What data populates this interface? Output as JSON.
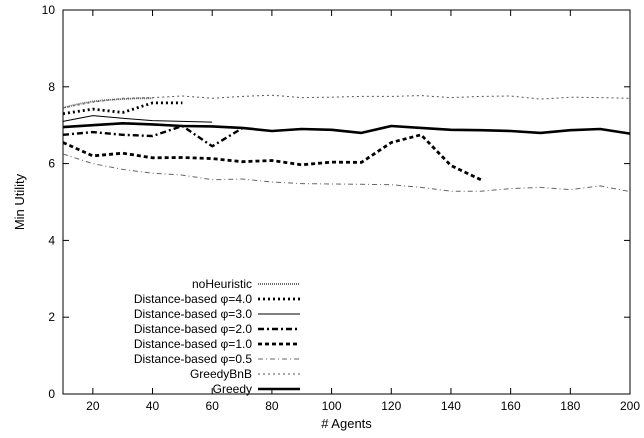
{
  "chart_data": {
    "type": "line",
    "title": "",
    "xlabel": "# Agents",
    "ylabel": "Min Utility",
    "xlim": [
      10,
      200
    ],
    "ylim": [
      0,
      10
    ],
    "xticks": [
      20,
      40,
      60,
      80,
      100,
      120,
      140,
      160,
      180,
      200
    ],
    "yticks": [
      0,
      2,
      4,
      6,
      8,
      10
    ],
    "grid": false,
    "legend_position": "bottom-left",
    "series": [
      {
        "name": "noHeuristic",
        "style": "dense-dotted",
        "color": "#555555",
        "points": [
          [
            10,
            7.45
          ],
          [
            15,
            7.55
          ],
          [
            20,
            7.62
          ],
          [
            25,
            7.66
          ],
          [
            30,
            7.68
          ],
          [
            35,
            7.7
          ],
          [
            40,
            7.7
          ]
        ]
      },
      {
        "name": "Distance-based φ=4.0",
        "style": "bold-dotted",
        "color": "#000000",
        "points": [
          [
            10,
            7.3
          ],
          [
            20,
            7.42
          ],
          [
            30,
            7.33
          ],
          [
            40,
            7.58
          ],
          [
            50,
            7.58
          ]
        ]
      },
      {
        "name": "Distance-based φ=3.0",
        "style": "solid-thin",
        "color": "#000000",
        "points": [
          [
            10,
            7.1
          ],
          [
            20,
            7.25
          ],
          [
            30,
            7.18
          ],
          [
            40,
            7.12
          ],
          [
            50,
            7.1
          ],
          [
            60,
            7.08
          ]
        ]
      },
      {
        "name": "Distance-based φ=2.0",
        "style": "dash-dot",
        "color": "#000000",
        "points": [
          [
            10,
            6.75
          ],
          [
            20,
            6.82
          ],
          [
            30,
            6.75
          ],
          [
            40,
            6.72
          ],
          [
            50,
            6.98
          ],
          [
            60,
            6.45
          ],
          [
            70,
            6.92
          ]
        ]
      },
      {
        "name": "Distance-based φ=1.0",
        "style": "bold-dashed",
        "color": "#000000",
        "points": [
          [
            10,
            6.55
          ],
          [
            20,
            6.2
          ],
          [
            30,
            6.27
          ],
          [
            40,
            6.15
          ],
          [
            50,
            6.16
          ],
          [
            60,
            6.13
          ],
          [
            70,
            6.05
          ],
          [
            80,
            6.08
          ],
          [
            90,
            5.97
          ],
          [
            100,
            6.04
          ],
          [
            110,
            6.03
          ],
          [
            120,
            6.55
          ],
          [
            130,
            6.75
          ],
          [
            140,
            5.95
          ],
          [
            150,
            5.58
          ]
        ]
      },
      {
        "name": "Distance-based φ=0.5",
        "style": "thin-dash-dot",
        "color": "#666666",
        "points": [
          [
            10,
            6.25
          ],
          [
            20,
            6.0
          ],
          [
            30,
            5.85
          ],
          [
            40,
            5.75
          ],
          [
            50,
            5.7
          ],
          [
            60,
            5.58
          ],
          [
            70,
            5.6
          ],
          [
            80,
            5.52
          ],
          [
            90,
            5.48
          ],
          [
            100,
            5.47
          ],
          [
            110,
            5.46
          ],
          [
            120,
            5.45
          ],
          [
            130,
            5.38
          ],
          [
            140,
            5.28
          ],
          [
            150,
            5.28
          ],
          [
            160,
            5.35
          ],
          [
            170,
            5.38
          ],
          [
            180,
            5.32
          ],
          [
            190,
            5.42
          ],
          [
            200,
            5.27
          ]
        ]
      },
      {
        "name": "GreedyBnB",
        "style": "thin-dotted",
        "color": "#555555",
        "points": [
          [
            10,
            7.45
          ],
          [
            20,
            7.6
          ],
          [
            30,
            7.7
          ],
          [
            40,
            7.72
          ],
          [
            50,
            7.76
          ],
          [
            60,
            7.7
          ],
          [
            70,
            7.75
          ],
          [
            80,
            7.78
          ],
          [
            90,
            7.72
          ],
          [
            100,
            7.73
          ],
          [
            110,
            7.75
          ],
          [
            120,
            7.75
          ],
          [
            130,
            7.77
          ],
          [
            140,
            7.72
          ],
          [
            150,
            7.75
          ],
          [
            160,
            7.76
          ],
          [
            170,
            7.68
          ],
          [
            180,
            7.73
          ],
          [
            190,
            7.72
          ],
          [
            200,
            7.7
          ]
        ]
      },
      {
        "name": "Greedy",
        "style": "solid-thick",
        "color": "#000000",
        "points": [
          [
            10,
            6.95
          ],
          [
            20,
            7.0
          ],
          [
            30,
            7.05
          ],
          [
            40,
            7.02
          ],
          [
            50,
            6.98
          ],
          [
            60,
            6.97
          ],
          [
            70,
            6.93
          ],
          [
            80,
            6.85
          ],
          [
            90,
            6.9
          ],
          [
            100,
            6.88
          ],
          [
            110,
            6.8
          ],
          [
            120,
            6.98
          ],
          [
            130,
            6.93
          ],
          [
            140,
            6.88
          ],
          [
            150,
            6.87
          ],
          [
            160,
            6.85
          ],
          [
            170,
            6.8
          ],
          [
            180,
            6.87
          ],
          [
            190,
            6.9
          ],
          [
            200,
            6.78
          ]
        ]
      }
    ]
  }
}
